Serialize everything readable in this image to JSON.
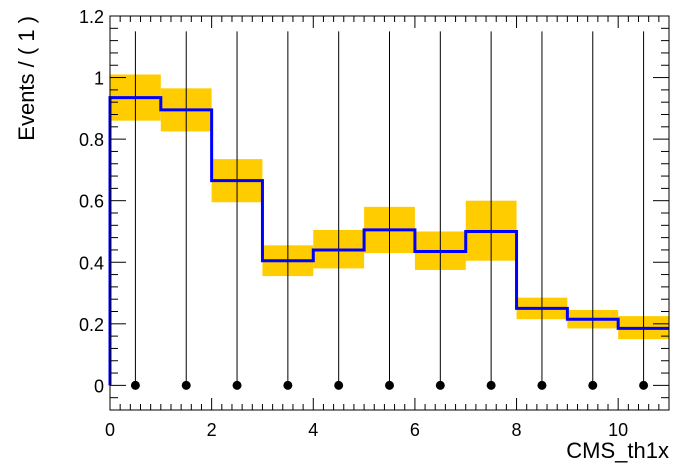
{
  "chart_data": {
    "type": "histogram",
    "xlabel": "CMS_th1x",
    "ylabel": "Events / ( 1 )",
    "xlim": [
      0,
      11
    ],
    "ylim": [
      -0.08,
      1.2
    ],
    "grid": false,
    "bin_edges": [
      0,
      1,
      2,
      3,
      4,
      5,
      6,
      7,
      8,
      9,
      10,
      11
    ],
    "series": [
      {
        "values": [
          0.935,
          0.895,
          0.665,
          0.405,
          0.44,
          0.505,
          0.435,
          0.5,
          0.25,
          0.215,
          0.185
        ],
        "color": "#0000ff",
        "style": "step"
      }
    ],
    "band": {
      "low": [
        0.86,
        0.825,
        0.595,
        0.355,
        0.38,
        0.43,
        0.375,
        0.405,
        0.215,
        0.185,
        0.15
      ],
      "high": [
        1.01,
        0.965,
        0.735,
        0.455,
        0.505,
        0.58,
        0.5,
        0.6,
        0.285,
        0.245,
        0.225
      ],
      "color": "#ffcc00"
    },
    "data_points": {
      "x": [
        0.5,
        1.5,
        2.5,
        3.5,
        4.5,
        5.5,
        6.5,
        7.5,
        8.5,
        9.5,
        10.5
      ],
      "y": [
        0,
        0,
        0,
        0,
        0,
        0,
        0,
        0,
        0,
        0,
        0
      ],
      "err_high": [
        1.15,
        1.15,
        1.15,
        1.15,
        1.15,
        1.15,
        1.15,
        1.15,
        1.15,
        1.15,
        1.15
      ],
      "err_low": [
        0,
        0,
        0,
        0,
        0,
        0,
        0,
        0,
        0,
        0,
        0
      ],
      "color": "#000000"
    },
    "x_ticks": [
      0,
      2,
      4,
      6,
      8,
      10
    ],
    "x_tick_labels": [
      "0",
      "2",
      "4",
      "6",
      "8",
      "10"
    ],
    "y_ticks": [
      0,
      0.2,
      0.4,
      0.6,
      0.8,
      1,
      1.2
    ],
    "y_tick_labels": [
      "0",
      "0.2",
      "0.4",
      "0.6",
      "0.8",
      "1",
      "1.2"
    ]
  }
}
